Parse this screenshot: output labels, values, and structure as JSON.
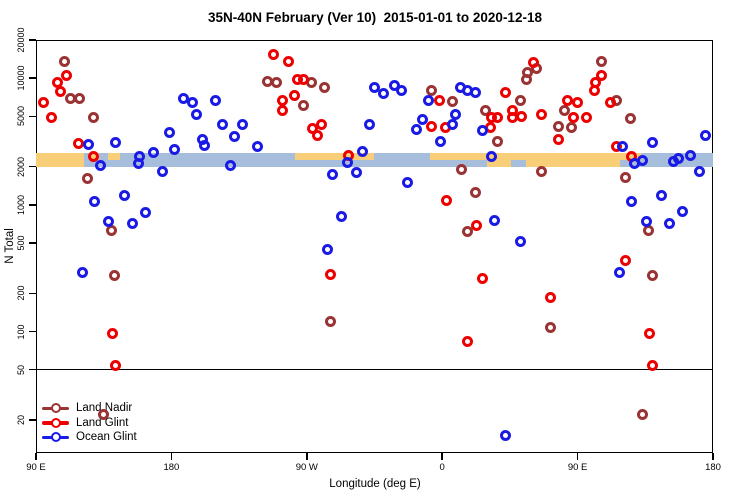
{
  "chart_data": {
    "type": "scatter",
    "title": "35N-40N February (Ver 10)  2015-01-01 to 2020-12-18",
    "xlabel": "Longitude (deg E)",
    "ylabel": "N Total",
    "x_axis": {
      "min": 90,
      "max": 540,
      "ticks": [
        {
          "value": 90,
          "label": "90 E"
        },
        {
          "value": 180,
          "label": "180"
        },
        {
          "value": 270,
          "label": "90 W"
        },
        {
          "value": 360,
          "label": "0"
        },
        {
          "value": 450,
          "label": "90 E"
        },
        {
          "value": 540,
          "label": "180"
        }
      ]
    },
    "y_axis": {
      "scale": "log",
      "min": 11,
      "max": 22000,
      "ticks": [
        20,
        50,
        100,
        200,
        500,
        1000,
        2000,
        5000,
        10000,
        20000
      ]
    },
    "reference_line_y": 50,
    "band": {
      "y_from": 2000,
      "y_to": 2550,
      "colors": {
        "land": "#F8CE79",
        "ocean": "#A7BDDC"
      },
      "segments": [
        {
          "from": 90,
          "to": 122,
          "color": "#F8CE79",
          "part": "full"
        },
        {
          "from": 122,
          "to": 390,
          "color": "#A7BDDC",
          "part": "full"
        },
        {
          "from": 390,
          "to": 478,
          "color": "#F8CE79",
          "part": "full"
        },
        {
          "from": 478,
          "to": 540,
          "color": "#A7BDDC",
          "part": "full"
        },
        {
          "from": 126,
          "to": 132,
          "color": "#F8CE79",
          "part": "top"
        },
        {
          "from": 138,
          "to": 146,
          "color": "#F8CE79",
          "part": "top"
        },
        {
          "from": 262,
          "to": 315,
          "color": "#F8CE79",
          "part": "top"
        },
        {
          "from": 352,
          "to": 390,
          "color": "#F8CE79",
          "part": "top"
        },
        {
          "from": 478,
          "to": 492,
          "color": "#F8CE79",
          "part": "top"
        },
        {
          "from": 406,
          "to": 416,
          "color": "#A7BDDC",
          "part": "bottom"
        }
      ]
    },
    "series": [
      {
        "name": "Land Nadir",
        "color": "#9A3334",
        "points": [
          [
            109,
            13600
          ],
          [
            113,
            6970
          ],
          [
            119,
            6970
          ],
          [
            128,
            4850
          ],
          [
            124,
            1600
          ],
          [
            140,
            622
          ],
          [
            142,
            279
          ],
          [
            135,
            22
          ],
          [
            244,
            9480
          ],
          [
            250,
            9160
          ],
          [
            273,
            9160
          ],
          [
            282,
            8360
          ],
          [
            268,
            6030
          ],
          [
            286,
            119
          ],
          [
            373,
            1885
          ],
          [
            382,
            1260
          ],
          [
            377,
            611
          ],
          [
            353,
            7920
          ],
          [
            367,
            6510
          ],
          [
            389,
            5510
          ],
          [
            397,
            3190
          ],
          [
            412,
            6610
          ],
          [
            417,
            11000
          ],
          [
            416,
            9670
          ],
          [
            423,
            12000
          ],
          [
            466,
            13600
          ],
          [
            476,
            6610
          ],
          [
            441,
            5600
          ],
          [
            437,
            4190
          ],
          [
            446,
            4100
          ],
          [
            485,
            4770
          ],
          [
            426,
            1820
          ],
          [
            482,
            1630
          ],
          [
            497,
            622
          ],
          [
            500,
            279
          ],
          [
            432,
            107
          ],
          [
            493,
            22
          ]
        ]
      },
      {
        "name": "Land Glint",
        "color": "#EE0000",
        "points": [
          [
            110,
            10400
          ],
          [
            104,
            9160
          ],
          [
            106,
            7780
          ],
          [
            95,
            6370
          ],
          [
            100,
            4930
          ],
          [
            118,
            3030
          ],
          [
            128,
            2390
          ],
          [
            141,
            97
          ],
          [
            143,
            54
          ],
          [
            248,
            15500
          ],
          [
            258,
            13600
          ],
          [
            264,
            9840
          ],
          [
            268,
            9670
          ],
          [
            254,
            6710
          ],
          [
            262,
            7360
          ],
          [
            254,
            5600
          ],
          [
            274,
            3970
          ],
          [
            280,
            4270
          ],
          [
            277,
            3550
          ],
          [
            298,
            2470
          ],
          [
            286,
            284
          ],
          [
            363,
            1090
          ],
          [
            383,
            681
          ],
          [
            387,
            260
          ],
          [
            377,
            83
          ],
          [
            358,
            6610
          ],
          [
            353,
            4190
          ],
          [
            362,
            4100
          ],
          [
            402,
            7670
          ],
          [
            393,
            4850
          ],
          [
            397,
            4900
          ],
          [
            392,
            4100
          ],
          [
            407,
            5600
          ],
          [
            407,
            4850
          ],
          [
            413,
            5000
          ],
          [
            421,
            13400
          ],
          [
            426,
            5120
          ],
          [
            466,
            10400
          ],
          [
            462,
            9160
          ],
          [
            461,
            7920
          ],
          [
            472,
            6370
          ],
          [
            443,
            6610
          ],
          [
            450,
            6370
          ],
          [
            447,
            4850
          ],
          [
            456,
            4850
          ],
          [
            437,
            3250
          ],
          [
            476,
            2910
          ],
          [
            486,
            2420
          ],
          [
            482,
            361
          ],
          [
            432,
            187
          ],
          [
            498,
            97
          ],
          [
            500,
            54
          ]
        ]
      },
      {
        "name": "Ocean Glint",
        "color": "#1A1AE6",
        "points": [
          [
            125,
            2980
          ],
          [
            143,
            3090
          ],
          [
            159,
            2390
          ],
          [
            188,
            6970
          ],
          [
            194,
            6370
          ],
          [
            197,
            5120
          ],
          [
            179,
            3690
          ],
          [
            168,
            2610
          ],
          [
            182,
            2710
          ],
          [
            201,
            3250
          ],
          [
            129,
            1070
          ],
          [
            149,
            1175
          ],
          [
            163,
            877
          ],
          [
            138,
            733
          ],
          [
            154,
            706
          ],
          [
            121,
            290
          ],
          [
            174,
            1820
          ],
          [
            219,
            2030
          ],
          [
            133,
            2030
          ],
          [
            158,
            2130
          ],
          [
            209,
            6610
          ],
          [
            214,
            4270
          ],
          [
            227,
            4270
          ],
          [
            222,
            3490
          ],
          [
            237,
            2910
          ],
          [
            202,
            2960
          ],
          [
            315,
            8360
          ],
          [
            312,
            4340
          ],
          [
            307,
            2660
          ],
          [
            287,
            1720
          ],
          [
            303,
            1790
          ],
          [
            297,
            2140
          ],
          [
            337,
            1490
          ],
          [
            293,
            816
          ],
          [
            284,
            448
          ],
          [
            321,
            7500
          ],
          [
            328,
            8670
          ],
          [
            333,
            7920
          ],
          [
            351,
            6710
          ],
          [
            372,
            8360
          ],
          [
            377,
            7920
          ],
          [
            382,
            7670
          ],
          [
            369,
            5120
          ],
          [
            347,
            4680
          ],
          [
            343,
            3900
          ],
          [
            367,
            4340
          ],
          [
            359,
            3190
          ],
          [
            387,
            3830
          ],
          [
            393,
            2420
          ],
          [
            480,
            2910
          ],
          [
            500,
            3090
          ],
          [
            493,
            2220
          ],
          [
            517,
            2330
          ],
          [
            525,
            2470
          ],
          [
            535,
            3550
          ],
          [
            488,
            2130
          ],
          [
            514,
            2180
          ],
          [
            531,
            1820
          ],
          [
            486,
            1070
          ],
          [
            506,
            1175
          ],
          [
            520,
            893
          ],
          [
            496,
            733
          ],
          [
            511,
            706
          ],
          [
            395,
            747
          ],
          [
            412,
            509
          ],
          [
            478,
            290
          ],
          [
            402,
            15
          ]
        ]
      }
    ],
    "legend_position": "bottom-left"
  }
}
